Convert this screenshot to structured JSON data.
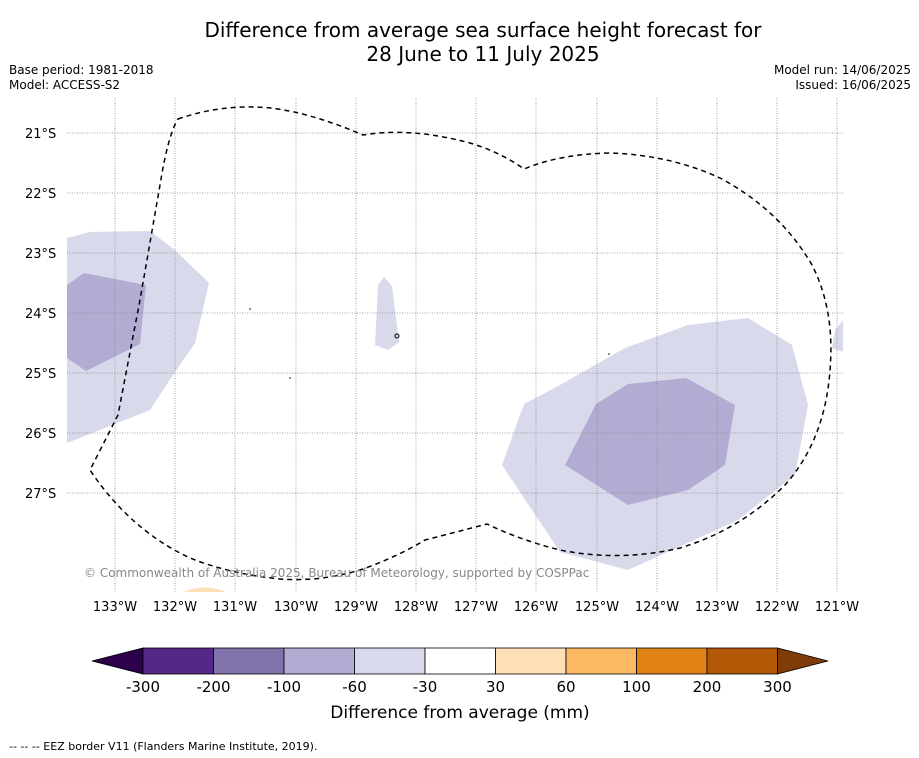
{
  "title_line1": "Difference from average sea surface height forecast for",
  "title_line2": "28 June to 11 July 2025",
  "base_period": "Base period: 1981-2018",
  "model": "Model: ACCESS-S2",
  "model_run": "Model run: 14/06/2025",
  "issued": "Issued: 16/06/2025",
  "copyright": "© Commonwealth of Australia 2025, Bureau of Meteorology, supported by COSPPac",
  "lat_labels": [
    "21°S",
    "22°S",
    "23°S",
    "24°S",
    "25°S",
    "26°S",
    "27°S"
  ],
  "lon_labels": [
    "133°W",
    "132°W",
    "131°W",
    "130°W",
    "129°W",
    "128°W",
    "127°W",
    "126°W",
    "125°W",
    "124°W",
    "123°W",
    "122°W",
    "121°W"
  ],
  "colorbar": {
    "title": "Difference from average (mm)",
    "tick_labels": [
      "-300",
      "-200",
      "-100",
      "-60",
      "-30",
      "30",
      "60",
      "100",
      "200",
      "300"
    ],
    "colors": [
      "#2d004b",
      "#542788",
      "#8073ac",
      "#b2abd2",
      "#d8daeb",
      "#ffffff",
      "#fee0b6",
      "#fdb863",
      "#e08214",
      "#b35806",
      "#7f3b08"
    ]
  },
  "footnote": "--  --  -- EEZ border V11 (Flanders Marine Institute, 2019)."
}
